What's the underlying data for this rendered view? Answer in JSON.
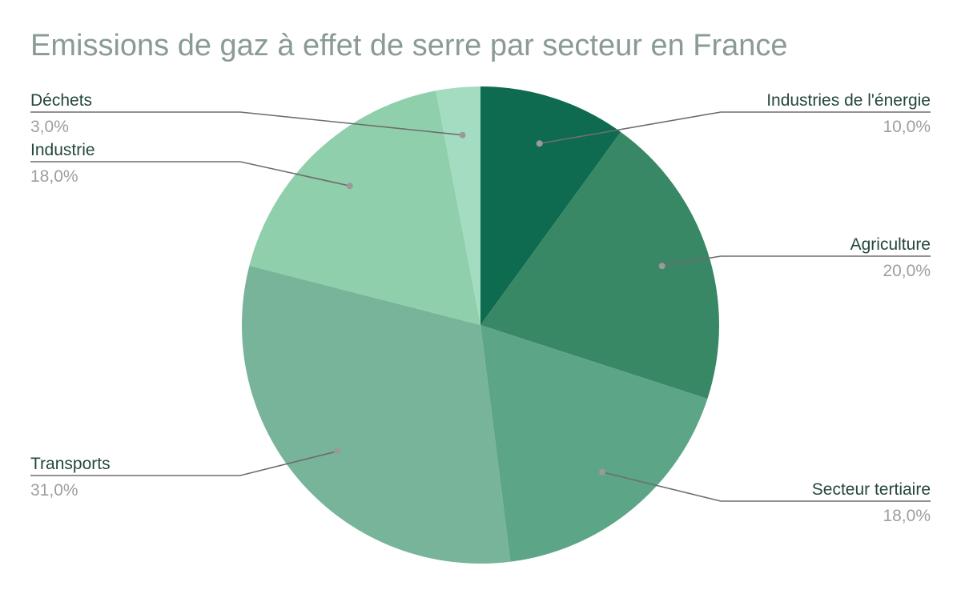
{
  "chart_data": {
    "type": "pie",
    "title": "Emissions de gaz à effet de serre par secteur en France",
    "slices": [
      {
        "label": "Industries de l'énergie",
        "value": 10.0,
        "value_label": "10,0%",
        "color": "#0f6b4f",
        "side": "right"
      },
      {
        "label": "Agriculture",
        "value": 20.0,
        "value_label": "20,0%",
        "color": "#388765",
        "side": "right"
      },
      {
        "label": "Secteur tertiaire",
        "value": 18.0,
        "value_label": "18,0%",
        "color": "#5da587",
        "side": "right"
      },
      {
        "label": "Transports",
        "value": 31.0,
        "value_label": "31,0%",
        "color": "#77b499",
        "side": "left"
      },
      {
        "label": "Industrie",
        "value": 18.0,
        "value_label": "18,0%",
        "color": "#8fcfab",
        "side": "left"
      },
      {
        "label": "Déchets",
        "value": 3.0,
        "value_label": "3,0%",
        "color": "#a3dcc1",
        "side": "left"
      }
    ],
    "start_angle": "12 o'clock",
    "direction": "clockwise",
    "legend": "none"
  }
}
